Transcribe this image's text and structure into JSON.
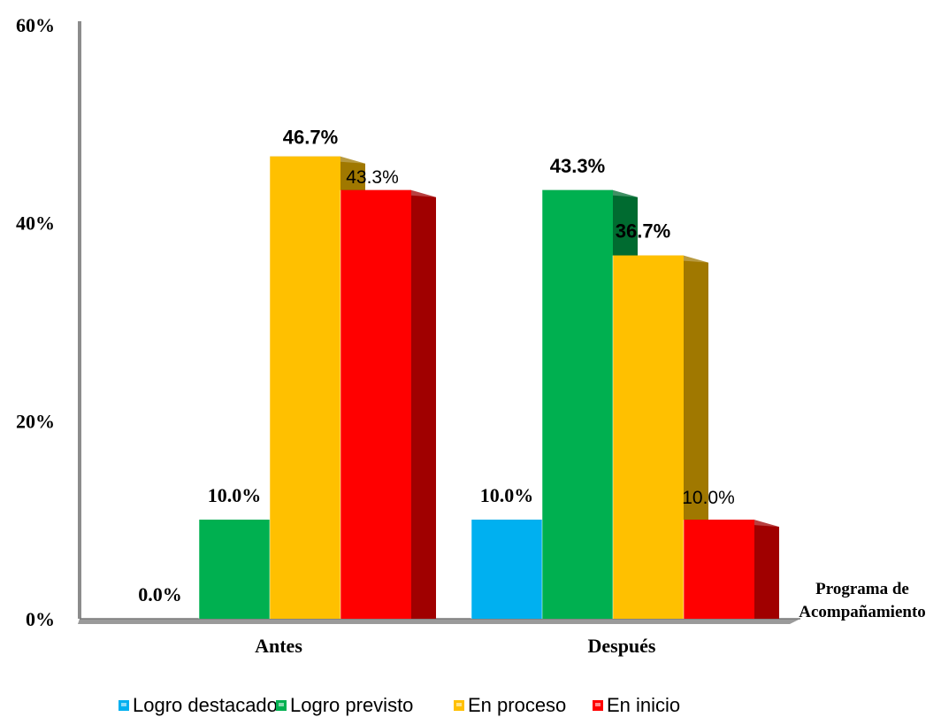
{
  "chart_data": {
    "type": "bar",
    "categories": [
      "Antes",
      "Después"
    ],
    "series": [
      {
        "name": "Logro destacado",
        "color": "#00B0F0",
        "side_color": "#0070A0",
        "values": [
          0.0,
          10.0
        ],
        "labels": [
          "0.0%",
          "10.0%"
        ]
      },
      {
        "name": "Logro previsto",
        "color": "#00B050",
        "side_color": "#006B30",
        "values": [
          10.0,
          43.3
        ],
        "labels": [
          "10.0%",
          "43.3%"
        ]
      },
      {
        "name": "En proceso",
        "color": "#FFC000",
        "side_color": "#A07800",
        "values": [
          46.7,
          36.7
        ],
        "labels": [
          "46.7%",
          "36.7%"
        ]
      },
      {
        "name": "En inicio",
        "color": "#FF0000",
        "side_color": "#A00000",
        "values": [
          43.3,
          10.0
        ],
        "labels": [
          "43.3%",
          "10.0%"
        ]
      }
    ],
    "y_ticks": [
      "0%",
      "20%",
      "40%",
      "60%"
    ],
    "ylim": [
      0,
      60
    ],
    "xlabel": "Programa de Acompañamiento",
    "xlabel_lines": [
      "Programa de",
      "Acompañamiento"
    ],
    "legend_position": "bottom",
    "grid": false
  }
}
